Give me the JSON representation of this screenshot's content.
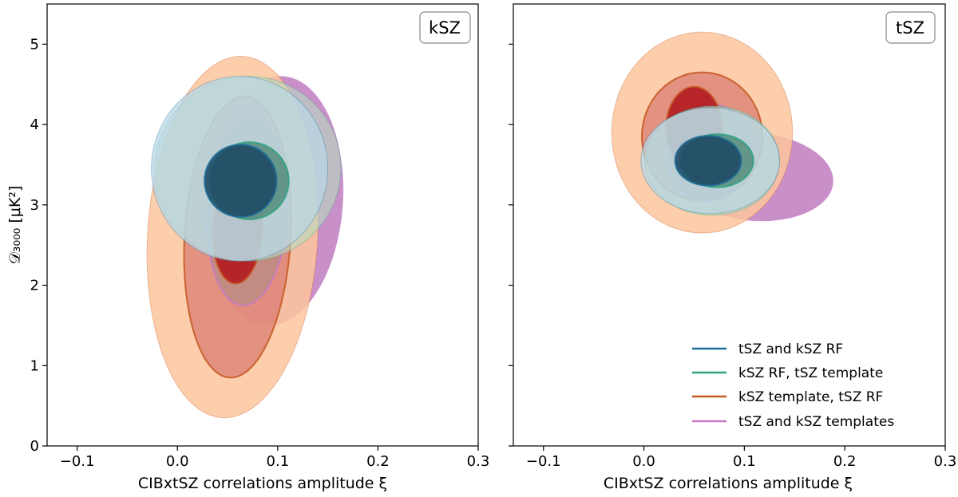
{
  "chart_data": [
    {
      "type": "contour",
      "panel": "left",
      "badge": "kSZ",
      "xlabel": "CIBxtSZ correlations amplitude ξ",
      "ylabel": "𝒟₃₀₀₀ [μK²]",
      "xlim": [
        -0.13,
        0.3
      ],
      "ylim": [
        0,
        5.5
      ],
      "xticks": [
        -0.1,
        0.0,
        0.1,
        0.2,
        0.3
      ],
      "xtick_labels": [
        "−0.1",
        "0.0",
        "0.1",
        "0.2",
        "0.3"
      ],
      "yticks": [
        0,
        1,
        2,
        3,
        4,
        5
      ],
      "ytick_labels": [
        "0",
        "1",
        "2",
        "3",
        "4",
        "5"
      ],
      "contours": [
        {
          "series": "tSZ and kSZ templates",
          "level": "outer",
          "cx": 0.097,
          "cy": 3.05,
          "rx": 0.068,
          "ry": 1.55,
          "tilt": 0.13
        },
        {
          "series": "kSZ template,  tSZ RF",
          "level": "outer",
          "cx": 0.055,
          "cy": 2.6,
          "rx": 0.085,
          "ry": 2.25,
          "tilt": 0.12
        },
        {
          "series": "kSZ template,  tSZ RF",
          "level": "inner",
          "cx": 0.06,
          "cy": 2.6,
          "rx": 0.053,
          "ry": 1.75,
          "tilt": 0.13
        },
        {
          "series": "tSZ and kSZ templates",
          "level": "inner",
          "cx": 0.07,
          "cy": 2.9,
          "rx": 0.04,
          "ry": 1.15,
          "tilt": 0.12
        },
        {
          "series": "kSZ template,  tSZ RF",
          "level": "core",
          "cx": 0.06,
          "cy": 2.7,
          "rx": 0.025,
          "ry": 0.68,
          "tilt": 0.1
        },
        {
          "series": "kSZ RF,  tSZ template",
          "level": "outer",
          "cx": 0.07,
          "cy": 3.45,
          "rx": 0.093,
          "ry": 1.15,
          "tilt": 0.02
        },
        {
          "series": "tSZ and kSZ RF",
          "level": "outer",
          "cx": 0.062,
          "cy": 3.45,
          "rx": 0.088,
          "ry": 1.15,
          "tilt": 0.0
        },
        {
          "series": "kSZ RF,  tSZ template",
          "level": "inner",
          "cx": 0.072,
          "cy": 3.3,
          "rx": 0.039,
          "ry": 0.48,
          "tilt": 0.0
        },
        {
          "series": "tSZ and kSZ RF",
          "level": "inner",
          "cx": 0.063,
          "cy": 3.3,
          "rx": 0.036,
          "ry": 0.45,
          "tilt": 0.0
        }
      ]
    },
    {
      "type": "contour",
      "panel": "right",
      "badge": "tSZ",
      "xlabel": "CIBxtSZ correlations amplitude ξ",
      "ylabel": "",
      "xlim": [
        -0.13,
        0.3
      ],
      "ylim": [
        0,
        5.5
      ],
      "xticks": [
        -0.1,
        0.0,
        0.1,
        0.2,
        0.3
      ],
      "xtick_labels": [
        "−0.1",
        "0.0",
        "0.1",
        "0.2",
        "0.3"
      ],
      "yticks": [
        0,
        1,
        2,
        3,
        4,
        5
      ],
      "contours": [
        {
          "series": "tSZ and kSZ templates",
          "level": "outer",
          "cx": 0.11,
          "cy": 3.35,
          "rx": 0.078,
          "ry": 0.55,
          "tilt": -0.45
        },
        {
          "series": "kSZ template,  tSZ RF",
          "level": "outer",
          "cx": 0.058,
          "cy": 3.9,
          "rx": 0.09,
          "ry": 1.25,
          "tilt": 0.0
        },
        {
          "series": "kSZ template,  tSZ RF",
          "level": "inner",
          "cx": 0.058,
          "cy": 3.85,
          "rx": 0.06,
          "ry": 0.8,
          "tilt": 0.0
        },
        {
          "series": "tSZ and kSZ templates",
          "level": "inner",
          "cx": 0.065,
          "cy": 3.65,
          "rx": 0.042,
          "ry": 0.6,
          "tilt": 0.15
        },
        {
          "series": "kSZ template,  tSZ RF",
          "level": "core",
          "cx": 0.05,
          "cy": 3.95,
          "rx": 0.028,
          "ry": 0.52,
          "tilt": 0.0
        },
        {
          "series": "kSZ RF,  tSZ template",
          "level": "outer",
          "cx": 0.068,
          "cy": 3.55,
          "rx": 0.067,
          "ry": 0.68,
          "tilt": 0.0
        },
        {
          "series": "tSZ and kSZ RF",
          "level": "outer",
          "cx": 0.066,
          "cy": 3.55,
          "rx": 0.069,
          "ry": 0.66,
          "tilt": 0.0
        },
        {
          "series": "kSZ RF,  tSZ template",
          "level": "inner",
          "cx": 0.073,
          "cy": 3.55,
          "rx": 0.036,
          "ry": 0.33,
          "tilt": 0.0
        },
        {
          "series": "tSZ and kSZ RF",
          "level": "inner",
          "cx": 0.064,
          "cy": 3.55,
          "rx": 0.033,
          "ry": 0.31,
          "tilt": 0.0
        }
      ]
    }
  ],
  "series_styles": {
    "tSZ and kSZ RF": {
      "line": "#1f6f9a",
      "outer_fill": "#b9d7e6",
      "inner_fill": "#1e4a66",
      "outer_opacity": 0.72,
      "inner_opacity": 0.9
    },
    "kSZ RF,  tSZ template": {
      "line": "#2ea37e",
      "outer_fill": "#b7dcc1",
      "inner_fill": "#3f7d68",
      "outer_opacity": 0.6,
      "inner_opacity": 0.7
    },
    "kSZ template,  tSZ RF": {
      "line": "#c65a24",
      "outer_fill": "#fcc69e",
      "inner_fill": "#d9786e",
      "core_fill": "#b3191e",
      "outer_opacity": 0.85,
      "inner_opacity": 0.7,
      "core_opacity": 0.9
    },
    "tSZ and kSZ templates": {
      "line": "#c77ac7",
      "outer_fill": "#c283c2",
      "inner_fill": "#8c8c8c",
      "outer_opacity": 0.9,
      "inner_opacity": 0.35
    }
  },
  "legend": {
    "placement": "lower right of right panel",
    "entries": [
      {
        "label": "tSZ and kSZ RF",
        "color": "#1f6f9a"
      },
      {
        "label": "kSZ RF,  tSZ template",
        "color": "#2ea37e"
      },
      {
        "label": "kSZ template,  tSZ RF",
        "color": "#c65a24"
      },
      {
        "label": "tSZ and kSZ templates",
        "color": "#c77ac7"
      }
    ]
  }
}
